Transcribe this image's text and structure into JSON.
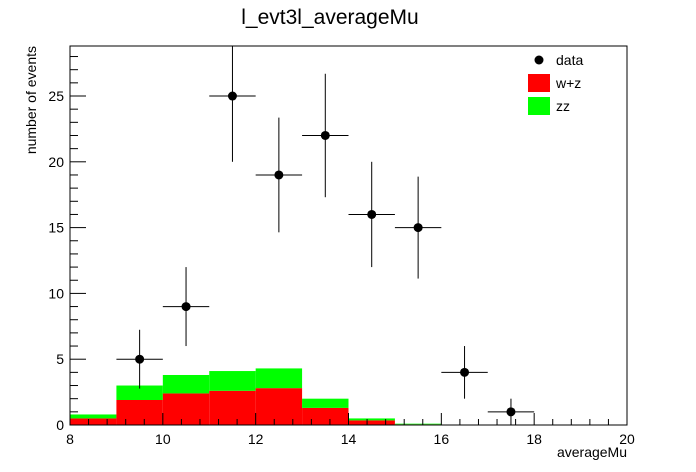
{
  "chart_data": {
    "type": "bar",
    "title": "l_evt3l_averageMu",
    "xlabel": "averageMu",
    "ylabel": "number of events",
    "xlim": [
      8,
      20
    ],
    "ylim": [
      0,
      28.8
    ],
    "x_ticks": [
      "8",
      "10",
      "12",
      "14",
      "16",
      "18",
      "20"
    ],
    "y_ticks": [
      "0",
      "5",
      "10",
      "15",
      "20",
      "25"
    ],
    "legend": {
      "placement": "top-right"
    },
    "bin_edges": [
      8,
      9,
      10,
      11,
      12,
      13,
      14,
      15,
      16,
      17,
      18,
      19,
      20
    ],
    "series": [
      {
        "name": "data",
        "kind": "points",
        "color": "#000000",
        "x": [
          9.5,
          10.5,
          11.5,
          12.5,
          13.5,
          14.5,
          15.5,
          16.5,
          17.5
        ],
        "y": [
          5,
          9,
          25,
          19,
          22,
          16,
          15,
          4,
          1
        ]
      },
      {
        "name": "w+z",
        "kind": "stacked-bar",
        "color": "#ff0000",
        "values": [
          0.5,
          1.9,
          2.4,
          2.6,
          2.8,
          1.3,
          0.35,
          0.05,
          0,
          0,
          0,
          0
        ]
      },
      {
        "name": "zz",
        "kind": "stacked-bar",
        "color": "#00ff00",
        "values": [
          0.3,
          1.1,
          1.4,
          1.5,
          1.5,
          0.7,
          0.15,
          0.05,
          0,
          0,
          0,
          0
        ]
      }
    ]
  }
}
